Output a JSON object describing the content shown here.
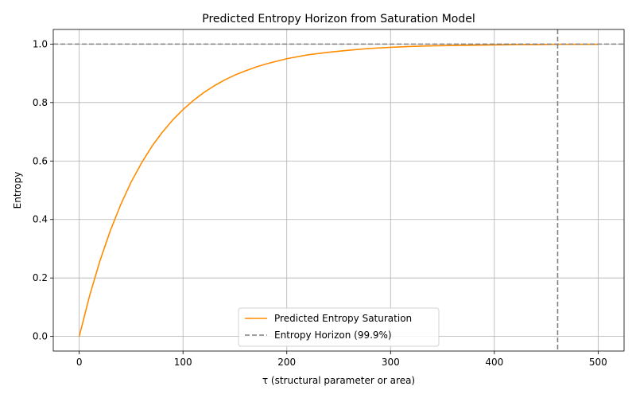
{
  "chart_data": {
    "type": "line",
    "title": "Predicted Entropy Horizon from Saturation Model",
    "xlabel": "τ (structural parameter or area)",
    "ylabel": "Entropy",
    "xlim": [
      -25,
      525
    ],
    "ylim": [
      -0.05,
      1.05
    ],
    "xticks": [
      0,
      100,
      200,
      300,
      400,
      500
    ],
    "yticks": [
      0.0,
      0.2,
      0.4,
      0.6,
      0.8,
      1.0
    ],
    "xtick_labels": [
      "0",
      "100",
      "200",
      "300",
      "400",
      "500"
    ],
    "ytick_labels": [
      "0.0",
      "0.2",
      "0.4",
      "0.6",
      "0.8",
      "1.0"
    ],
    "grid": true,
    "legend_position": "lower-center",
    "series": [
      {
        "name": "Predicted Entropy Saturation",
        "color": "#ff8c00",
        "style": "solid",
        "x": [
          0,
          10,
          20,
          30,
          40,
          50,
          60,
          70,
          80,
          90,
          100,
          110,
          120,
          130,
          140,
          150,
          160,
          170,
          180,
          190,
          200,
          220,
          240,
          260,
          280,
          300,
          320,
          340,
          360,
          380,
          400,
          420,
          440,
          460,
          480,
          500
        ],
        "y": [
          0.0,
          0.139,
          0.259,
          0.362,
          0.451,
          0.528,
          0.593,
          0.65,
          0.698,
          0.74,
          0.776,
          0.807,
          0.834,
          0.857,
          0.877,
          0.894,
          0.908,
          0.921,
          0.932,
          0.941,
          0.95,
          0.963,
          0.972,
          0.979,
          0.985,
          0.989,
          0.992,
          0.994,
          0.995,
          0.996,
          0.997,
          0.998,
          0.998,
          0.999,
          0.999,
          0.999
        ]
      }
    ],
    "reference_lines": [
      {
        "name": "Entropy Horizon (99.9%)",
        "orientation": "horizontal",
        "value": 1.0,
        "color": "#808080",
        "style": "dashed"
      },
      {
        "name": "",
        "orientation": "vertical",
        "value": 461,
        "color": "#808080",
        "style": "dashed"
      }
    ],
    "legend": [
      {
        "label": "Predicted Entropy Saturation",
        "color": "#ff8c00",
        "style": "solid"
      },
      {
        "label": "Entropy Horizon (99.9%)",
        "color": "#808080",
        "style": "dashed"
      }
    ]
  }
}
